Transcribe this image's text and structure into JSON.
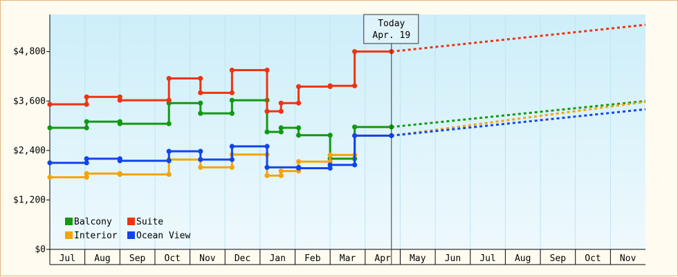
{
  "chart_data": {
    "type": "line",
    "title": "",
    "xlabel": "",
    "ylabel": "",
    "x_months": [
      "Jul",
      "Aug",
      "Sep",
      "Oct",
      "Nov",
      "Dec",
      "Jan",
      "Feb",
      "Mar",
      "Apr",
      "May",
      "Jun",
      "Jul",
      "Aug",
      "Sep",
      "Oct",
      "Nov"
    ],
    "ylim": [
      0,
      5700
    ],
    "yticks": [
      0,
      1200,
      2400,
      3600,
      4800
    ],
    "ytick_labels": [
      "$0",
      "$1,200",
      "$2,400",
      "$3,600",
      "$4,800"
    ],
    "today": {
      "label": "Today",
      "date": "Apr. 19",
      "x": 9.75
    },
    "legend": {
      "placement": "bottom-left"
    },
    "series": [
      {
        "name": "Balcony",
        "color": "#119911",
        "points": [
          [
            0,
            2950
          ],
          [
            1.05,
            2950
          ],
          [
            1.05,
            3100
          ],
          [
            2.0,
            3100
          ],
          [
            2.0,
            3050
          ],
          [
            3.4,
            3050
          ],
          [
            3.4,
            3550
          ],
          [
            4.3,
            3550
          ],
          [
            4.3,
            3300
          ],
          [
            5.2,
            3300
          ],
          [
            5.2,
            3620
          ],
          [
            6.2,
            3620
          ],
          [
            6.2,
            2850
          ],
          [
            6.6,
            2850
          ],
          [
            6.6,
            2950
          ],
          [
            7.1,
            2950
          ],
          [
            7.1,
            2770
          ],
          [
            8.0,
            2770
          ],
          [
            8.0,
            2200
          ],
          [
            8.7,
            2200
          ],
          [
            8.7,
            2970
          ],
          [
            9.75,
            2970
          ]
        ],
        "projection": [
          [
            9.75,
            2970
          ],
          [
            17,
            3600
          ]
        ]
      },
      {
        "name": "Suite",
        "color": "#ee3311",
        "points": [
          [
            0,
            3520
          ],
          [
            1.05,
            3520
          ],
          [
            1.05,
            3700
          ],
          [
            2.0,
            3700
          ],
          [
            2.0,
            3620
          ],
          [
            3.4,
            3620
          ],
          [
            3.4,
            4150
          ],
          [
            4.3,
            4150
          ],
          [
            4.3,
            3800
          ],
          [
            5.2,
            3800
          ],
          [
            5.2,
            4350
          ],
          [
            6.2,
            4350
          ],
          [
            6.2,
            3350
          ],
          [
            6.6,
            3350
          ],
          [
            6.6,
            3550
          ],
          [
            7.1,
            3550
          ],
          [
            7.1,
            3950
          ],
          [
            8.0,
            3950
          ],
          [
            8.0,
            3970
          ],
          [
            8.7,
            3970
          ],
          [
            8.7,
            4800
          ],
          [
            9.75,
            4800
          ]
        ],
        "projection": [
          [
            9.75,
            4800
          ],
          [
            17,
            5450
          ]
        ]
      },
      {
        "name": "Interior",
        "color": "#f5a30a",
        "points": [
          [
            0,
            1750
          ],
          [
            1.05,
            1750
          ],
          [
            1.05,
            1840
          ],
          [
            2.0,
            1840
          ],
          [
            2.0,
            1820
          ],
          [
            3.4,
            1820
          ],
          [
            3.4,
            2180
          ],
          [
            4.3,
            2180
          ],
          [
            4.3,
            1990
          ],
          [
            5.2,
            1990
          ],
          [
            5.2,
            2300
          ],
          [
            6.2,
            2300
          ],
          [
            6.2,
            1790
          ],
          [
            6.6,
            1790
          ],
          [
            6.6,
            1900
          ],
          [
            7.1,
            1900
          ],
          [
            7.1,
            2130
          ],
          [
            8.0,
            2130
          ],
          [
            8.0,
            2290
          ],
          [
            8.7,
            2290
          ],
          [
            8.7,
            2760
          ],
          [
            9.75,
            2760
          ]
        ],
        "projection": [
          [
            9.75,
            2760
          ],
          [
            17,
            3580
          ]
        ]
      },
      {
        "name": "Ocean View",
        "color": "#1144ee",
        "points": [
          [
            0,
            2100
          ],
          [
            1.05,
            2100
          ],
          [
            1.05,
            2200
          ],
          [
            2.0,
            2200
          ],
          [
            2.0,
            2150
          ],
          [
            3.4,
            2150
          ],
          [
            3.4,
            2380
          ],
          [
            4.3,
            2380
          ],
          [
            4.3,
            2180
          ],
          [
            5.2,
            2180
          ],
          [
            5.2,
            2500
          ],
          [
            6.2,
            2500
          ],
          [
            6.2,
            1990
          ],
          [
            7.1,
            1990
          ],
          [
            7.1,
            1970
          ],
          [
            8.0,
            1970
          ],
          [
            8.0,
            2050
          ],
          [
            8.7,
            2050
          ],
          [
            8.7,
            2760
          ],
          [
            9.75,
            2760
          ]
        ],
        "projection": [
          [
            9.75,
            2760
          ],
          [
            17,
            3400
          ]
        ]
      }
    ]
  }
}
